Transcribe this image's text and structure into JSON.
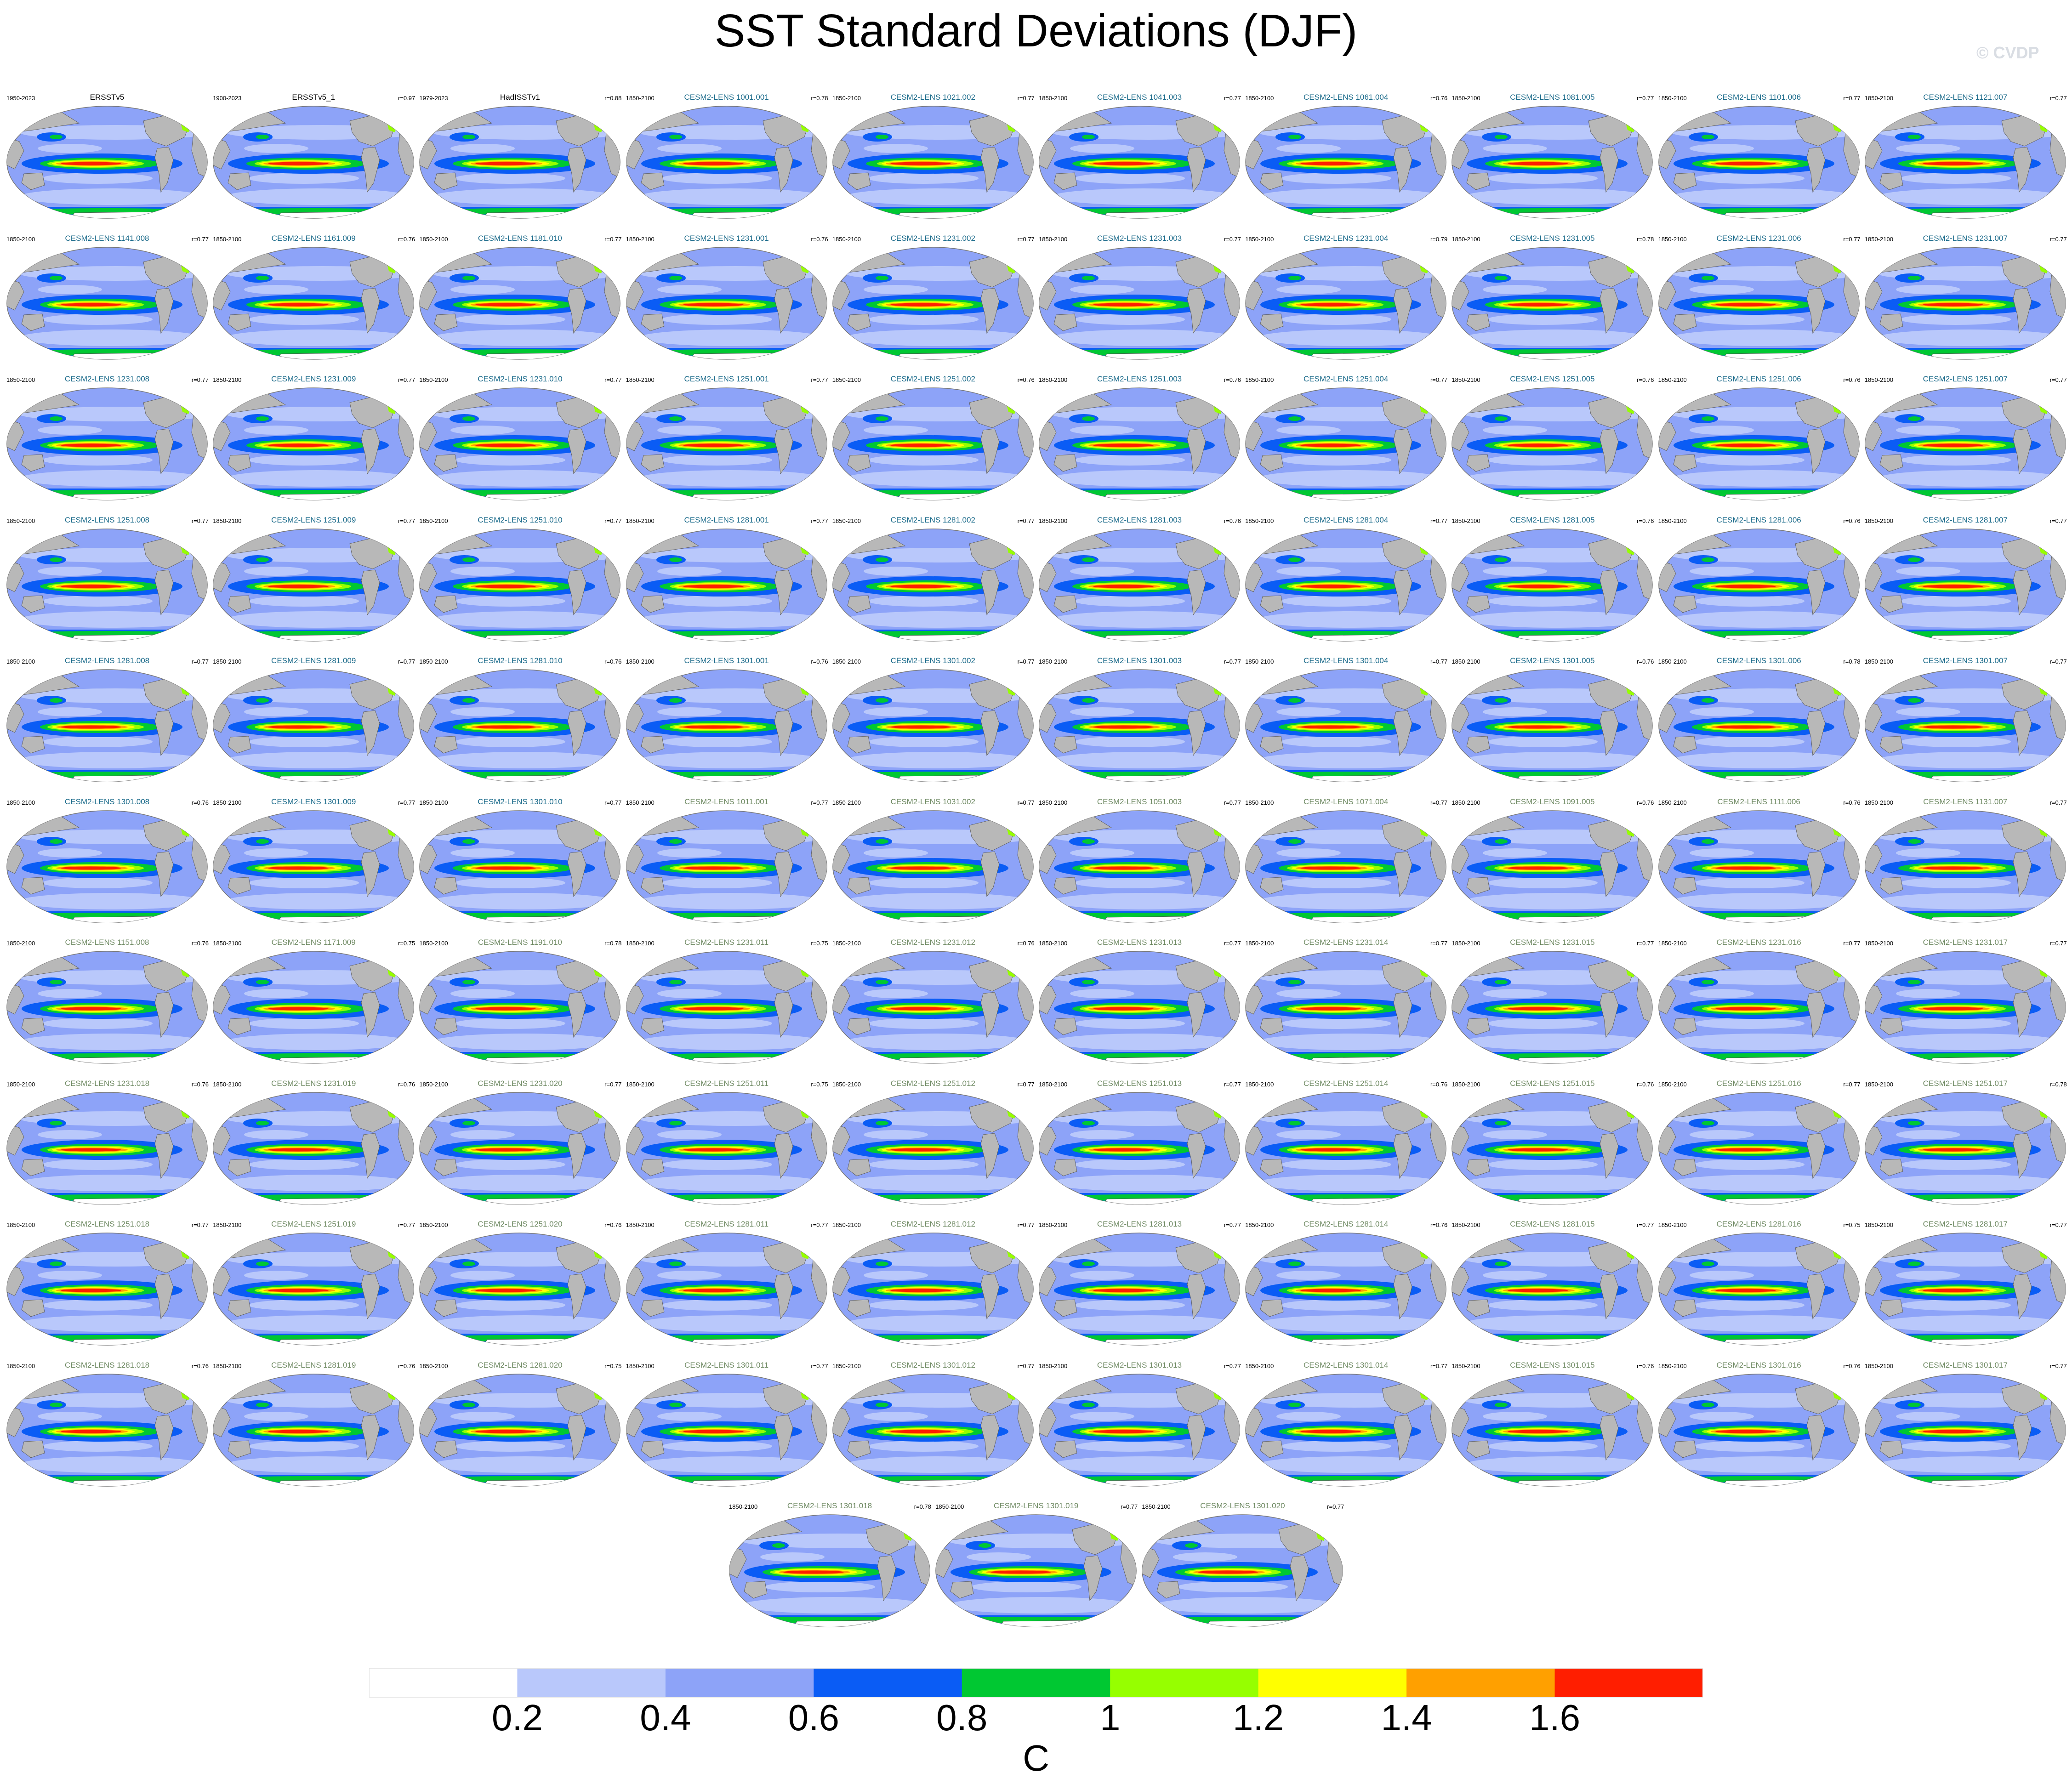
{
  "title": "SST Standard Deviations (DJF)",
  "watermark": "© CVDP",
  "colors": {
    "observed_label": "#000000",
    "lens_label_a": "#1a6a8a",
    "lens_label_b": "#6f8a63",
    "land": "#b8b8b8",
    "ocean_base": "#8da3f8"
  },
  "panels": [
    {
      "label": "ERSSTv5",
      "years": "1950-2023",
      "r": "",
      "label_style": "observed"
    },
    {
      "label": "ERSSTv5_1",
      "years": "1900-2023",
      "r": "r=0.97",
      "label_style": "observed"
    },
    {
      "label": "HadISSTv1",
      "years": "1979-2023",
      "r": "r=0.88",
      "label_style": "observed"
    },
    {
      "label": "CESM2-LENS 1001.001",
      "years": "1850-2100",
      "r": "r=0.78",
      "label_style": "a"
    },
    {
      "label": "CESM2-LENS 1021.002",
      "years": "1850-2100",
      "r": "r=0.77",
      "label_style": "a"
    },
    {
      "label": "CESM2-LENS 1041.003",
      "years": "1850-2100",
      "r": "r=0.77",
      "label_style": "a"
    },
    {
      "label": "CESM2-LENS 1061.004",
      "years": "1850-2100",
      "r": "r=0.76",
      "label_style": "a"
    },
    {
      "label": "CESM2-LENS 1081.005",
      "years": "1850-2100",
      "r": "r=0.77",
      "label_style": "a"
    },
    {
      "label": "CESM2-LENS 1101.006",
      "years": "1850-2100",
      "r": "r=0.77",
      "label_style": "a"
    },
    {
      "label": "CESM2-LENS 1121.007",
      "years": "1850-2100",
      "r": "r=0.77",
      "label_style": "a"
    },
    {
      "label": "CESM2-LENS 1141.008",
      "years": "1850-2100",
      "r": "r=0.77",
      "label_style": "a"
    },
    {
      "label": "CESM2-LENS 1161.009",
      "years": "1850-2100",
      "r": "r=0.76",
      "label_style": "a"
    },
    {
      "label": "CESM2-LENS 1181.010",
      "years": "1850-2100",
      "r": "r=0.77",
      "label_style": "a"
    },
    {
      "label": "CESM2-LENS 1231.001",
      "years": "1850-2100",
      "r": "r=0.76",
      "label_style": "a"
    },
    {
      "label": "CESM2-LENS 1231.002",
      "years": "1850-2100",
      "r": "r=0.77",
      "label_style": "a"
    },
    {
      "label": "CESM2-LENS 1231.003",
      "years": "1850-2100",
      "r": "r=0.77",
      "label_style": "a"
    },
    {
      "label": "CESM2-LENS 1231.004",
      "years": "1850-2100",
      "r": "r=0.79",
      "label_style": "a"
    },
    {
      "label": "CESM2-LENS 1231.005",
      "years": "1850-2100",
      "r": "r=0.78",
      "label_style": "a"
    },
    {
      "label": "CESM2-LENS 1231.006",
      "years": "1850-2100",
      "r": "r=0.77",
      "label_style": "a"
    },
    {
      "label": "CESM2-LENS 1231.007",
      "years": "1850-2100",
      "r": "r=0.77",
      "label_style": "a"
    },
    {
      "label": "CESM2-LENS 1231.008",
      "years": "1850-2100",
      "r": "r=0.77",
      "label_style": "a"
    },
    {
      "label": "CESM2-LENS 1231.009",
      "years": "1850-2100",
      "r": "r=0.77",
      "label_style": "a"
    },
    {
      "label": "CESM2-LENS 1231.010",
      "years": "1850-2100",
      "r": "r=0.77",
      "label_style": "a"
    },
    {
      "label": "CESM2-LENS 1251.001",
      "years": "1850-2100",
      "r": "r=0.77",
      "label_style": "a"
    },
    {
      "label": "CESM2-LENS 1251.002",
      "years": "1850-2100",
      "r": "r=0.76",
      "label_style": "a"
    },
    {
      "label": "CESM2-LENS 1251.003",
      "years": "1850-2100",
      "r": "r=0.76",
      "label_style": "a"
    },
    {
      "label": "CESM2-LENS 1251.004",
      "years": "1850-2100",
      "r": "r=0.77",
      "label_style": "a"
    },
    {
      "label": "CESM2-LENS 1251.005",
      "years": "1850-2100",
      "r": "r=0.76",
      "label_style": "a"
    },
    {
      "label": "CESM2-LENS 1251.006",
      "years": "1850-2100",
      "r": "r=0.76",
      "label_style": "a"
    },
    {
      "label": "CESM2-LENS 1251.007",
      "years": "1850-2100",
      "r": "r=0.77",
      "label_style": "a"
    },
    {
      "label": "CESM2-LENS 1251.008",
      "years": "1850-2100",
      "r": "r=0.77",
      "label_style": "a"
    },
    {
      "label": "CESM2-LENS 1251.009",
      "years": "1850-2100",
      "r": "r=0.77",
      "label_style": "a"
    },
    {
      "label": "CESM2-LENS 1251.010",
      "years": "1850-2100",
      "r": "r=0.77",
      "label_style": "a"
    },
    {
      "label": "CESM2-LENS 1281.001",
      "years": "1850-2100",
      "r": "r=0.77",
      "label_style": "a"
    },
    {
      "label": "CESM2-LENS 1281.002",
      "years": "1850-2100",
      "r": "r=0.77",
      "label_style": "a"
    },
    {
      "label": "CESM2-LENS 1281.003",
      "years": "1850-2100",
      "r": "r=0.76",
      "label_style": "a"
    },
    {
      "label": "CESM2-LENS 1281.004",
      "years": "1850-2100",
      "r": "r=0.77",
      "label_style": "a"
    },
    {
      "label": "CESM2-LENS 1281.005",
      "years": "1850-2100",
      "r": "r=0.76",
      "label_style": "a"
    },
    {
      "label": "CESM2-LENS 1281.006",
      "years": "1850-2100",
      "r": "r=0.76",
      "label_style": "a"
    },
    {
      "label": "CESM2-LENS 1281.007",
      "years": "1850-2100",
      "r": "r=0.77",
      "label_style": "a"
    },
    {
      "label": "CESM2-LENS 1281.008",
      "years": "1850-2100",
      "r": "r=0.77",
      "label_style": "a"
    },
    {
      "label": "CESM2-LENS 1281.009",
      "years": "1850-2100",
      "r": "r=0.77",
      "label_style": "a"
    },
    {
      "label": "CESM2-LENS 1281.010",
      "years": "1850-2100",
      "r": "r=0.76",
      "label_style": "a"
    },
    {
      "label": "CESM2-LENS 1301.001",
      "years": "1850-2100",
      "r": "r=0.76",
      "label_style": "a"
    },
    {
      "label": "CESM2-LENS 1301.002",
      "years": "1850-2100",
      "r": "r=0.77",
      "label_style": "a"
    },
    {
      "label": "CESM2-LENS 1301.003",
      "years": "1850-2100",
      "r": "r=0.77",
      "label_style": "a"
    },
    {
      "label": "CESM2-LENS 1301.004",
      "years": "1850-2100",
      "r": "r=0.77",
      "label_style": "a"
    },
    {
      "label": "CESM2-LENS 1301.005",
      "years": "1850-2100",
      "r": "r=0.76",
      "label_style": "a"
    },
    {
      "label": "CESM2-LENS 1301.006",
      "years": "1850-2100",
      "r": "r=0.78",
      "label_style": "a"
    },
    {
      "label": "CESM2-LENS 1301.007",
      "years": "1850-2100",
      "r": "r=0.77",
      "label_style": "a"
    },
    {
      "label": "CESM2-LENS 1301.008",
      "years": "1850-2100",
      "r": "r=0.76",
      "label_style": "a"
    },
    {
      "label": "CESM2-LENS 1301.009",
      "years": "1850-2100",
      "r": "r=0.77",
      "label_style": "a"
    },
    {
      "label": "CESM2-LENS 1301.010",
      "years": "1850-2100",
      "r": "r=0.77",
      "label_style": "a"
    },
    {
      "label": "CESM2-LENS 1011.001",
      "years": "1850-2100",
      "r": "r=0.77",
      "label_style": "b"
    },
    {
      "label": "CESM2-LENS 1031.002",
      "years": "1850-2100",
      "r": "r=0.77",
      "label_style": "b"
    },
    {
      "label": "CESM2-LENS 1051.003",
      "years": "1850-2100",
      "r": "r=0.77",
      "label_style": "b"
    },
    {
      "label": "CESM2-LENS 1071.004",
      "years": "1850-2100",
      "r": "r=0.77",
      "label_style": "b"
    },
    {
      "label": "CESM2-LENS 1091.005",
      "years": "1850-2100",
      "r": "r=0.76",
      "label_style": "b"
    },
    {
      "label": "CESM2-LENS 1111.006",
      "years": "1850-2100",
      "r": "r=0.76",
      "label_style": "b"
    },
    {
      "label": "CESM2-LENS 1131.007",
      "years": "1850-2100",
      "r": "r=0.77",
      "label_style": "b"
    },
    {
      "label": "CESM2-LENS 1151.008",
      "years": "1850-2100",
      "r": "r=0.76",
      "label_style": "b"
    },
    {
      "label": "CESM2-LENS 1171.009",
      "years": "1850-2100",
      "r": "r=0.75",
      "label_style": "b"
    },
    {
      "label": "CESM2-LENS 1191.010",
      "years": "1850-2100",
      "r": "r=0.78",
      "label_style": "b"
    },
    {
      "label": "CESM2-LENS 1231.011",
      "years": "1850-2100",
      "r": "r=0.75",
      "label_style": "b"
    },
    {
      "label": "CESM2-LENS 1231.012",
      "years": "1850-2100",
      "r": "r=0.76",
      "label_style": "b"
    },
    {
      "label": "CESM2-LENS 1231.013",
      "years": "1850-2100",
      "r": "r=0.77",
      "label_style": "b"
    },
    {
      "label": "CESM2-LENS 1231.014",
      "years": "1850-2100",
      "r": "r=0.77",
      "label_style": "b"
    },
    {
      "label": "CESM2-LENS 1231.015",
      "years": "1850-2100",
      "r": "r=0.77",
      "label_style": "b"
    },
    {
      "label": "CESM2-LENS 1231.016",
      "years": "1850-2100",
      "r": "r=0.77",
      "label_style": "b"
    },
    {
      "label": "CESM2-LENS 1231.017",
      "years": "1850-2100",
      "r": "r=0.77",
      "label_style": "b"
    },
    {
      "label": "CESM2-LENS 1231.018",
      "years": "1850-2100",
      "r": "r=0.76",
      "label_style": "b"
    },
    {
      "label": "CESM2-LENS 1231.019",
      "years": "1850-2100",
      "r": "r=0.76",
      "label_style": "b"
    },
    {
      "label": "CESM2-LENS 1231.020",
      "years": "1850-2100",
      "r": "r=0.77",
      "label_style": "b"
    },
    {
      "label": "CESM2-LENS 1251.011",
      "years": "1850-2100",
      "r": "r=0.75",
      "label_style": "b"
    },
    {
      "label": "CESM2-LENS 1251.012",
      "years": "1850-2100",
      "r": "r=0.77",
      "label_style": "b"
    },
    {
      "label": "CESM2-LENS 1251.013",
      "years": "1850-2100",
      "r": "r=0.77",
      "label_style": "b"
    },
    {
      "label": "CESM2-LENS 1251.014",
      "years": "1850-2100",
      "r": "r=0.76",
      "label_style": "b"
    },
    {
      "label": "CESM2-LENS 1251.015",
      "years": "1850-2100",
      "r": "r=0.76",
      "label_style": "b"
    },
    {
      "label": "CESM2-LENS 1251.016",
      "years": "1850-2100",
      "r": "r=0.77",
      "label_style": "b"
    },
    {
      "label": "CESM2-LENS 1251.017",
      "years": "1850-2100",
      "r": "r=0.78",
      "label_style": "b"
    },
    {
      "label": "CESM2-LENS 1251.018",
      "years": "1850-2100",
      "r": "r=0.77",
      "label_style": "b"
    },
    {
      "label": "CESM2-LENS 1251.019",
      "years": "1850-2100",
      "r": "r=0.77",
      "label_style": "b"
    },
    {
      "label": "CESM2-LENS 1251.020",
      "years": "1850-2100",
      "r": "r=0.76",
      "label_style": "b"
    },
    {
      "label": "CESM2-LENS 1281.011",
      "years": "1850-2100",
      "r": "r=0.77",
      "label_style": "b"
    },
    {
      "label": "CESM2-LENS 1281.012",
      "years": "1850-2100",
      "r": "r=0.77",
      "label_style": "b"
    },
    {
      "label": "CESM2-LENS 1281.013",
      "years": "1850-2100",
      "r": "r=0.77",
      "label_style": "b"
    },
    {
      "label": "CESM2-LENS 1281.014",
      "years": "1850-2100",
      "r": "r=0.76",
      "label_style": "b"
    },
    {
      "label": "CESM2-LENS 1281.015",
      "years": "1850-2100",
      "r": "r=0.77",
      "label_style": "b"
    },
    {
      "label": "CESM2-LENS 1281.016",
      "years": "1850-2100",
      "r": "r=0.75",
      "label_style": "b"
    },
    {
      "label": "CESM2-LENS 1281.017",
      "years": "1850-2100",
      "r": "r=0.77",
      "label_style": "b"
    },
    {
      "label": "CESM2-LENS 1281.018",
      "years": "1850-2100",
      "r": "r=0.76",
      "label_style": "b"
    },
    {
      "label": "CESM2-LENS 1281.019",
      "years": "1850-2100",
      "r": "r=0.76",
      "label_style": "b"
    },
    {
      "label": "CESM2-LENS 1281.020",
      "years": "1850-2100",
      "r": "r=0.75",
      "label_style": "b"
    },
    {
      "label": "CESM2-LENS 1301.011",
      "years": "1850-2100",
      "r": "r=0.77",
      "label_style": "b"
    },
    {
      "label": "CESM2-LENS 1301.012",
      "years": "1850-2100",
      "r": "r=0.77",
      "label_style": "b"
    },
    {
      "label": "CESM2-LENS 1301.013",
      "years": "1850-2100",
      "r": "r=0.77",
      "label_style": "b"
    },
    {
      "label": "CESM2-LENS 1301.014",
      "years": "1850-2100",
      "r": "r=0.77",
      "label_style": "b"
    },
    {
      "label": "CESM2-LENS 1301.015",
      "years": "1850-2100",
      "r": "r=0.76",
      "label_style": "b"
    },
    {
      "label": "CESM2-LENS 1301.016",
      "years": "1850-2100",
      "r": "r=0.76",
      "label_style": "b"
    },
    {
      "label": "CESM2-LENS 1301.017",
      "years": "1850-2100",
      "r": "r=0.77",
      "label_style": "b"
    },
    {
      "label": "CESM2-LENS 1301.018",
      "years": "1850-2100",
      "r": "r=0.78",
      "label_style": "b"
    },
    {
      "label": "CESM2-LENS 1301.019",
      "years": "1850-2100",
      "r": "r=0.77",
      "label_style": "b"
    },
    {
      "label": "CESM2-LENS 1301.020",
      "years": "1850-2100",
      "r": "r=0.77",
      "label_style": "b"
    }
  ],
  "colorbar": {
    "colors": [
      "#ffffff",
      "#b9c8fb",
      "#8da3f8",
      "#0a5cf5",
      "#00c832",
      "#96ff00",
      "#ffff00",
      "#ffa000",
      "#ff1e00"
    ],
    "tick_labels": [
      "0.2",
      "0.4",
      "0.6",
      "0.8",
      "1",
      "1.2",
      "1.4",
      "1.6"
    ],
    "units": "C"
  }
}
